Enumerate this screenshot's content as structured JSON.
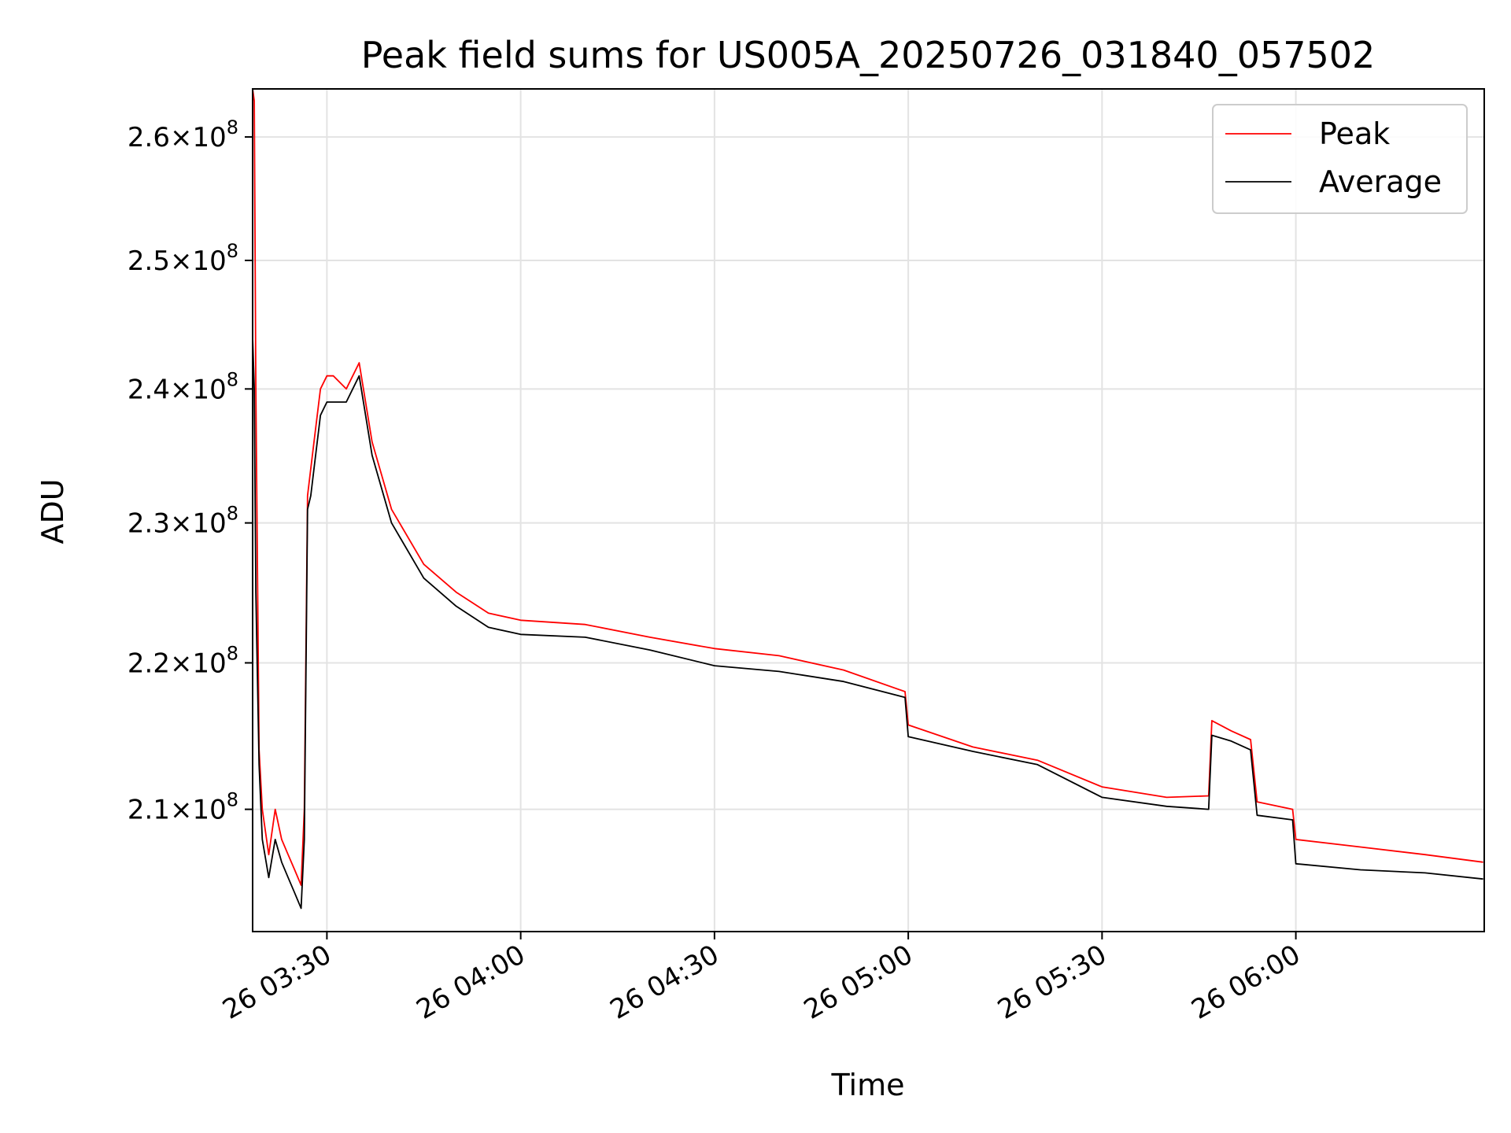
{
  "chart_data": {
    "type": "line",
    "title": "Peak field sums for US005A_20250726_031840_057502",
    "xlabel": "Time",
    "ylabel": "ADU",
    "grid": true,
    "legend_position": "top-right",
    "x_ticks": [
      "26 03:30",
      "26 04:00",
      "26 04:30",
      "26 05:00",
      "26 05:30",
      "26 06:00"
    ],
    "y_ticks": [
      {
        "value": 210000000,
        "mantissa": "2.1",
        "exponent": "8"
      },
      {
        "value": 220000000,
        "mantissa": "2.2",
        "exponent": "8"
      },
      {
        "value": 230000000,
        "mantissa": "2.3",
        "exponent": "8"
      },
      {
        "value": 240000000,
        "mantissa": "2.4",
        "exponent": "8"
      },
      {
        "value": 250000000,
        "mantissa": "2.5",
        "exponent": "8"
      },
      {
        "value": 260000000,
        "mantissa": "2.6",
        "exponent": "8"
      }
    ],
    "xlim": [
      "2025-07-26 03:18:30",
      "2025-07-26 06:29:10"
    ],
    "ylim": [
      202000000,
      264000000
    ],
    "y_scale": "log",
    "series": [
      {
        "name": "Peak",
        "color": "#ff0000",
        "x": [
          "2025-07-26 03:18:30",
          "2025-07-26 03:18:45",
          "2025-07-26 03:19:00",
          "2025-07-26 03:19:30",
          "2025-07-26 03:20:00",
          "2025-07-26 03:21:00",
          "2025-07-26 03:22:00",
          "2025-07-26 03:23:00",
          "2025-07-26 03:24:00",
          "2025-07-26 03:25:00",
          "2025-07-26 03:26:00",
          "2025-07-26 03:26:30",
          "2025-07-26 03:27:00",
          "2025-07-26 03:27:30",
          "2025-07-26 03:28:00",
          "2025-07-26 03:29:00",
          "2025-07-26 03:30:00",
          "2025-07-26 03:31:00",
          "2025-07-26 03:33:00",
          "2025-07-26 03:35:00",
          "2025-07-26 03:37:00",
          "2025-07-26 03:40:00",
          "2025-07-26 03:45:00",
          "2025-07-26 03:50:00",
          "2025-07-26 03:55:00",
          "2025-07-26 04:00:00",
          "2025-07-26 04:10:00",
          "2025-07-26 04:20:00",
          "2025-07-26 04:30:00",
          "2025-07-26 04:40:00",
          "2025-07-26 04:50:00",
          "2025-07-26 04:59:30",
          "2025-07-26 05:00:00",
          "2025-07-26 05:10:00",
          "2025-07-26 05:20:00",
          "2025-07-26 05:30:00",
          "2025-07-26 05:40:00",
          "2025-07-26 05:46:30",
          "2025-07-26 05:47:00",
          "2025-07-26 05:50:00",
          "2025-07-26 05:53:00",
          "2025-07-26 05:54:00",
          "2025-07-26 05:59:30",
          "2025-07-26 06:00:00",
          "2025-07-26 06:10:00",
          "2025-07-26 06:20:00",
          "2025-07-26 06:29:00"
        ],
        "y": [
          264000000,
          263000000,
          240000000,
          214000000,
          210000000,
          207000000,
          210000000,
          208000000,
          207000000,
          206000000,
          205000000,
          210000000,
          232000000,
          234000000,
          236000000,
          240000000,
          241000000,
          241000000,
          240000000,
          242000000,
          236000000,
          231000000,
          227000000,
          225000000,
          223500000,
          223000000,
          222700000,
          221800000,
          221000000,
          220500000,
          219500000,
          218000000,
          215700000,
          214200000,
          213300000,
          211500000,
          210800000,
          210900000,
          216000000,
          215300000,
          214700000,
          210500000,
          210000000,
          208000000,
          207500000,
          207000000,
          206500000
        ]
      },
      {
        "name": "Average",
        "color": "#000000",
        "x": [
          "2025-07-26 03:18:30",
          "2025-07-26 03:18:45",
          "2025-07-26 03:19:00",
          "2025-07-26 03:19:30",
          "2025-07-26 03:20:00",
          "2025-07-26 03:21:00",
          "2025-07-26 03:22:00",
          "2025-07-26 03:23:00",
          "2025-07-26 03:24:00",
          "2025-07-26 03:25:00",
          "2025-07-26 03:26:00",
          "2025-07-26 03:26:30",
          "2025-07-26 03:27:00",
          "2025-07-26 03:27:30",
          "2025-07-26 03:28:00",
          "2025-07-26 03:29:00",
          "2025-07-26 03:30:00",
          "2025-07-26 03:31:00",
          "2025-07-26 03:33:00",
          "2025-07-26 03:35:00",
          "2025-07-26 03:37:00",
          "2025-07-26 03:40:00",
          "2025-07-26 03:45:00",
          "2025-07-26 03:50:00",
          "2025-07-26 03:55:00",
          "2025-07-26 04:00:00",
          "2025-07-26 04:10:00",
          "2025-07-26 04:20:00",
          "2025-07-26 04:30:00",
          "2025-07-26 04:40:00",
          "2025-07-26 04:50:00",
          "2025-07-26 04:59:30",
          "2025-07-26 05:00:00",
          "2025-07-26 05:10:00",
          "2025-07-26 05:20:00",
          "2025-07-26 05:30:00",
          "2025-07-26 05:40:00",
          "2025-07-26 05:46:30",
          "2025-07-26 05:47:00",
          "2025-07-26 05:50:00",
          "2025-07-26 05:53:00",
          "2025-07-26 05:54:00",
          "2025-07-26 05:59:30",
          "2025-07-26 06:00:00",
          "2025-07-26 06:10:00",
          "2025-07-26 06:20:00",
          "2025-07-26 06:29:00"
        ],
        "y": [
          244000000,
          240000000,
          225000000,
          213000000,
          208000000,
          205500000,
          208000000,
          206500000,
          205500000,
          204500000,
          203500000,
          208000000,
          231000000,
          232000000,
          234000000,
          238000000,
          239000000,
          239000000,
          239000000,
          241000000,
          235000000,
          230000000,
          226000000,
          224000000,
          222500000,
          222000000,
          221800000,
          220900000,
          219800000,
          219400000,
          218700000,
          217600000,
          214900000,
          213900000,
          213000000,
          210800000,
          210200000,
          210000000,
          215000000,
          214600000,
          214000000,
          209600000,
          209300000,
          206400000,
          206000000,
          205800000,
          205400000
        ]
      }
    ]
  }
}
